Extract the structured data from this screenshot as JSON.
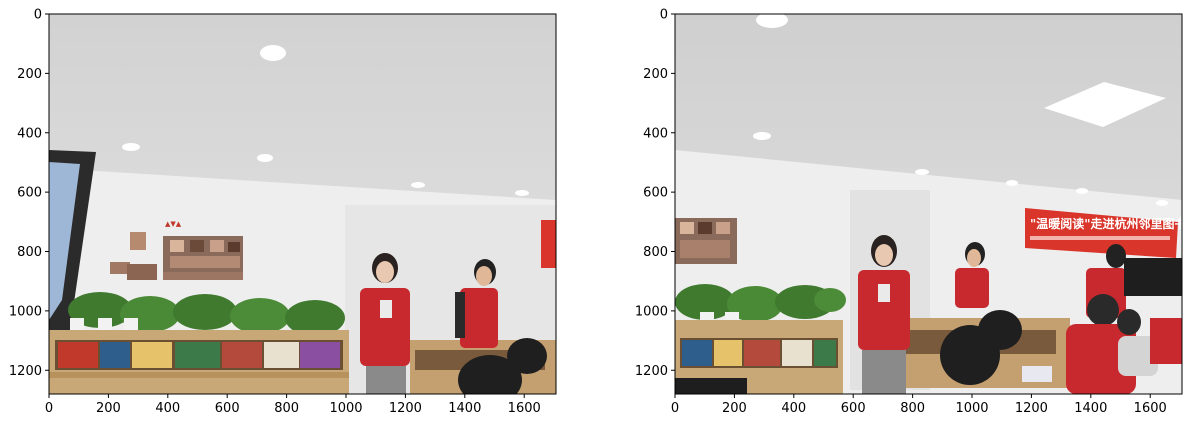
{
  "figure": {
    "panels": [
      {
        "name": "left-photo",
        "x_ticks": [
          "0",
          "200",
          "400",
          "600",
          "800",
          "1000",
          "1200",
          "1400",
          "1600"
        ],
        "y_ticks": [
          "0",
          "200",
          "400",
          "600",
          "800",
          "1000",
          "1200"
        ],
        "x_range": [
          0,
          1707
        ],
        "y_range": [
          0,
          1280
        ]
      },
      {
        "name": "right-photo",
        "x_ticks": [
          "0",
          "200",
          "400",
          "600",
          "800",
          "1000",
          "1200",
          "1400",
          "1600"
        ],
        "y_ticks": [
          "0",
          "200",
          "400",
          "600",
          "800",
          "1000",
          "1200"
        ],
        "x_range": [
          0,
          1707
        ],
        "y_range": [
          0,
          1280
        ],
        "banner_text": "\"温暖阅读\"走进杭州邻里图书空间"
      }
    ],
    "colors": {
      "ceiling": "#d6d6d6",
      "wall": "#eeeeee",
      "vest_red": "#c8292f",
      "shelf_wood": "#c9a877",
      "plant_green": "#3f7a2e",
      "banner_red": "#d9352b"
    }
  }
}
